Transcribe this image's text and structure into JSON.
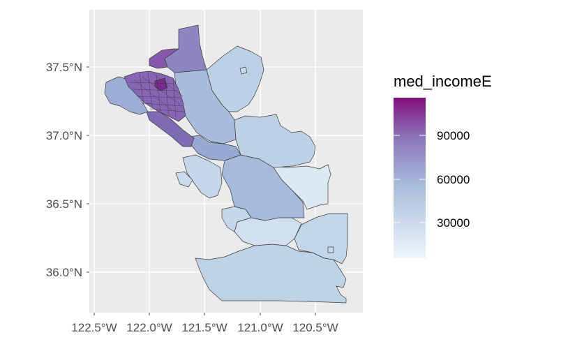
{
  "map": {
    "panel_background": "#ebebeb",
    "grid_color": "#ffffff",
    "border_color": "#3a3a3a",
    "fill_scale": {
      "low": "#eef6fa",
      "mid": "#8c9fcf",
      "high": "#820f7a"
    },
    "x_ticks": [
      {
        "value": -122.5,
        "label": "122.5°W"
      },
      {
        "value": -122.0,
        "label": "122.0°W"
      },
      {
        "value": -121.5,
        "label": "121.5°W"
      },
      {
        "value": -121.0,
        "label": "121.0°W"
      },
      {
        "value": -120.5,
        "label": "120.5°W"
      }
    ],
    "y_ticks": [
      {
        "value": 37.5,
        "label": "37.5°N"
      },
      {
        "value": 37.0,
        "label": "37.0°N"
      },
      {
        "value": 36.5,
        "label": "36.5°N"
      },
      {
        "value": 36.0,
        "label": "36.0°N"
      }
    ]
  },
  "legend": {
    "title": "med_incomeE",
    "min": 15000,
    "max": 113000,
    "ticks": [
      {
        "value": 90000,
        "label": "90000"
      },
      {
        "value": 60000,
        "label": "60000"
      },
      {
        "value": 30000,
        "label": "30000"
      }
    ]
  }
}
